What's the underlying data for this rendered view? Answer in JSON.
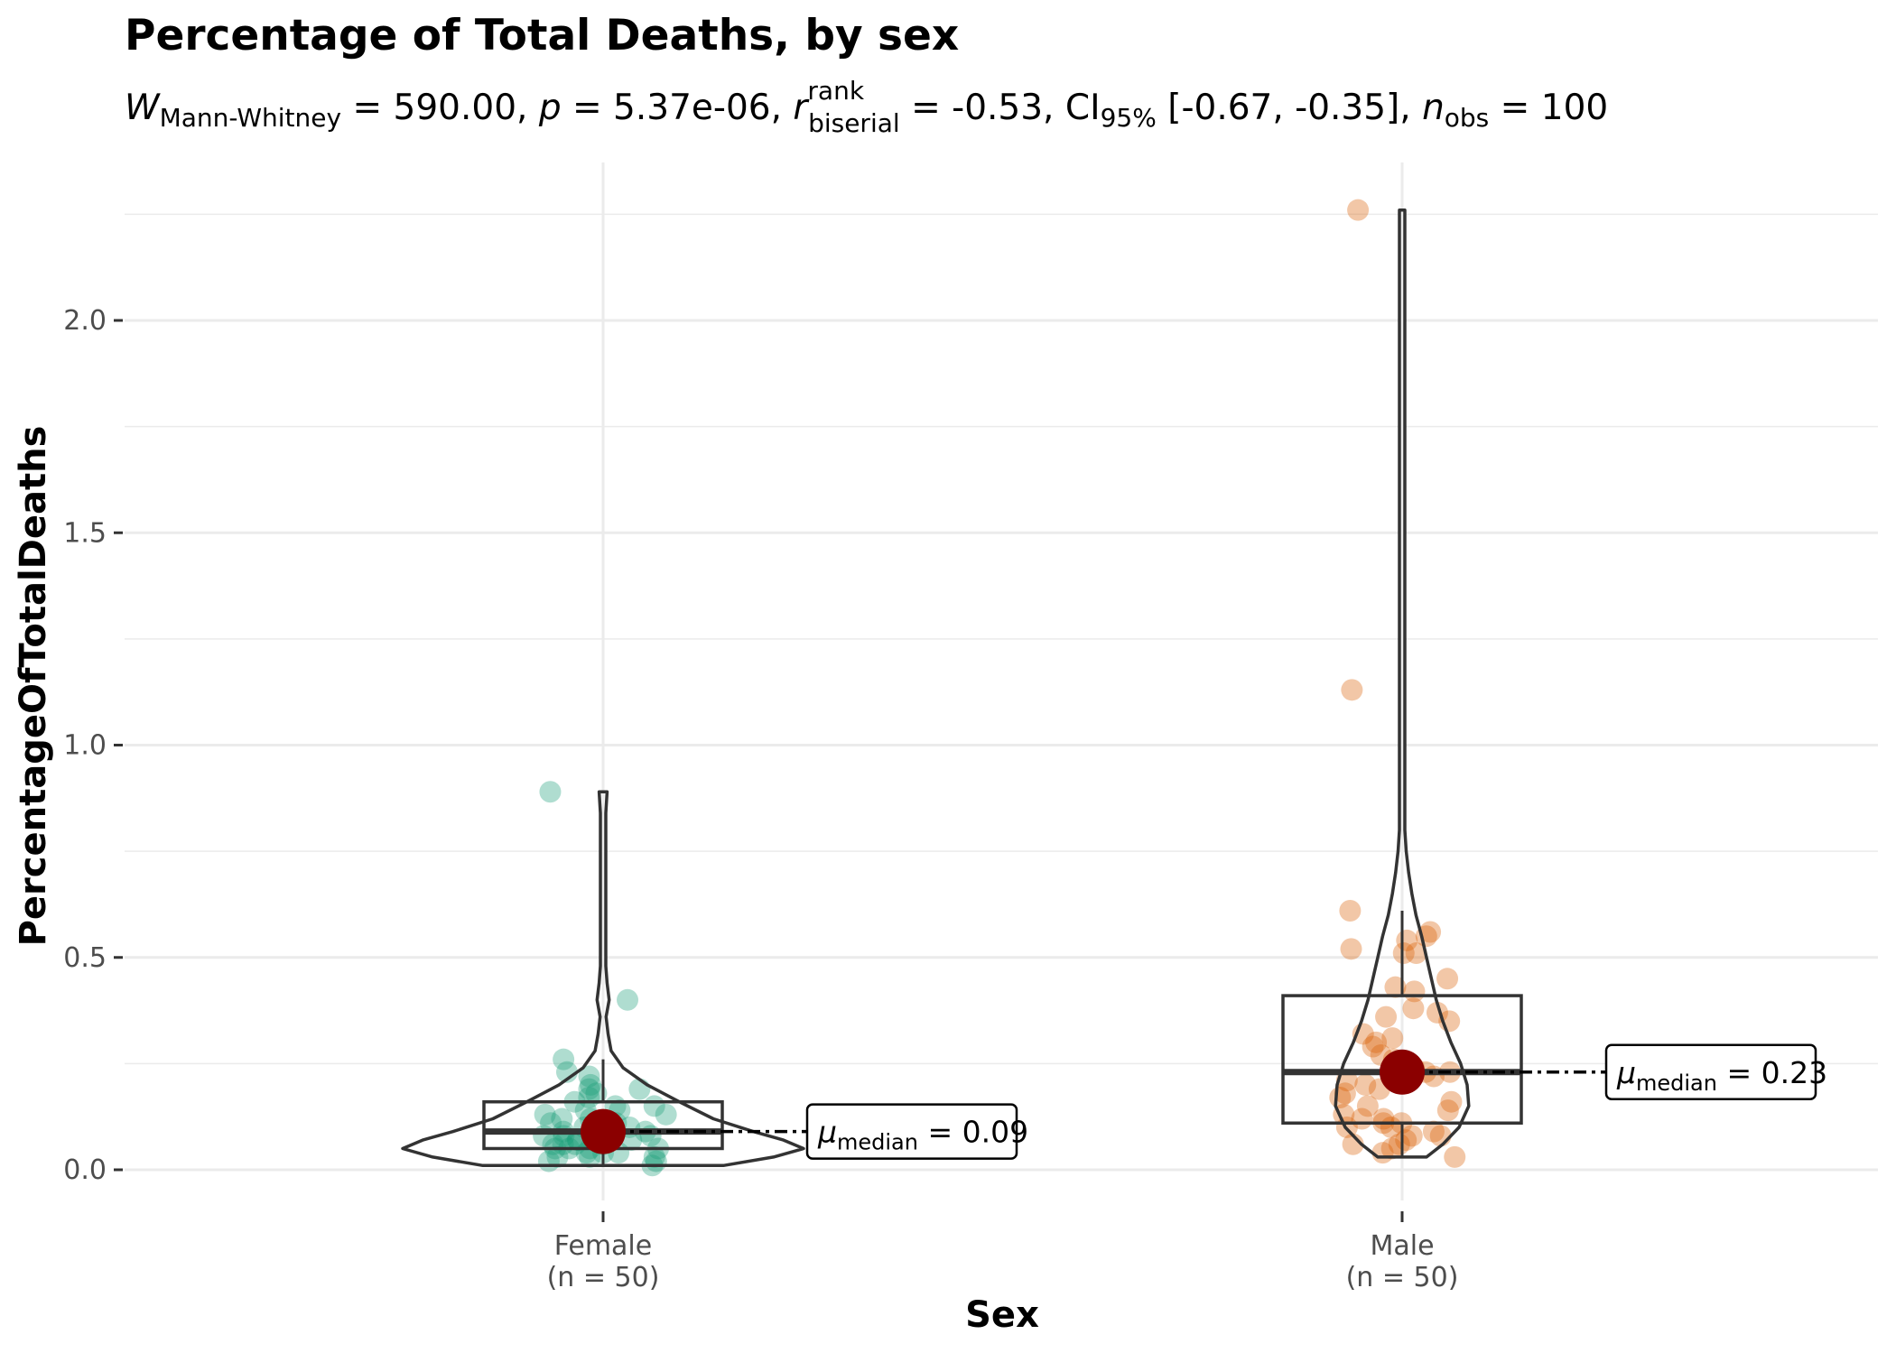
{
  "chart_data": {
    "type": "violin-box-jitter",
    "title": "Percentage of Total Deaths, by sex",
    "subtitle": {
      "W_symbol": "W",
      "W_sub": "Mann-Whitney",
      "W_value": " = 590.00, ",
      "p_symbol": "p",
      "p_value": " = 5.37e-06, ",
      "r_symbol": "r",
      "r_sup": "rank",
      "r_sub": "biserial",
      "r_value": " = -0.53, CI",
      "ci_sub": "95%",
      "ci_value": " [-0.67, -0.35], ",
      "n_symbol": "n",
      "n_sub": "obs",
      "n_value": " = 100"
    },
    "xlabel": "Sex",
    "ylabel": "PercentageOfTotalDeaths",
    "ylim": [
      -0.05,
      2.3
    ],
    "yticks": [
      0.0,
      0.5,
      1.0,
      1.5,
      2.0
    ],
    "ytick_labels": [
      "0.0",
      "0.5",
      "1.0",
      "1.5",
      "2.0"
    ],
    "grid": true,
    "groups": [
      {
        "name": "Female",
        "n_label": "(n = 50)",
        "color": "#1b9e77",
        "median": 0.09,
        "q1": 0.05,
        "q3": 0.16,
        "whisker_low": 0.01,
        "whisker_high": 0.26,
        "median_label_symbol": "μ",
        "median_label_sub": "median",
        "median_label_value": " = 0.09",
        "points": [
          0.01,
          0.02,
          0.02,
          0.03,
          0.03,
          0.03,
          0.04,
          0.04,
          0.04,
          0.05,
          0.05,
          0.05,
          0.05,
          0.06,
          0.06,
          0.06,
          0.06,
          0.07,
          0.07,
          0.07,
          0.08,
          0.08,
          0.08,
          0.09,
          0.09,
          0.09,
          0.1,
          0.1,
          0.1,
          0.11,
          0.11,
          0.12,
          0.12,
          0.13,
          0.13,
          0.14,
          0.14,
          0.15,
          0.15,
          0.16,
          0.17,
          0.18,
          0.19,
          0.19,
          0.2,
          0.22,
          0.23,
          0.26,
          0.4,
          0.89
        ],
        "violin_profile": [
          [
            0.01,
            0.6
          ],
          [
            0.03,
            0.85
          ],
          [
            0.05,
            1.0
          ],
          [
            0.07,
            0.9
          ],
          [
            0.09,
            0.75
          ],
          [
            0.12,
            0.55
          ],
          [
            0.16,
            0.38
          ],
          [
            0.2,
            0.22
          ],
          [
            0.24,
            0.1
          ],
          [
            0.28,
            0.04
          ],
          [
            0.32,
            0.025
          ],
          [
            0.36,
            0.015
          ],
          [
            0.4,
            0.03
          ],
          [
            0.44,
            0.02
          ],
          [
            0.48,
            0.01
          ],
          [
            0.55,
            0.008
          ],
          [
            0.65,
            0.006
          ],
          [
            0.75,
            0.006
          ],
          [
            0.84,
            0.01
          ],
          [
            0.89,
            0.02
          ]
        ]
      },
      {
        "name": "Male",
        "n_label": "(n = 50)",
        "color": "#d95f02",
        "median": 0.23,
        "q1": 0.11,
        "q3": 0.41,
        "whisker_low": 0.03,
        "whisker_high": 0.61,
        "median_label_symbol": "μ",
        "median_label_sub": "median",
        "median_label_value": " = 0.23",
        "points": [
          0.03,
          0.04,
          0.05,
          0.06,
          0.06,
          0.07,
          0.08,
          0.08,
          0.09,
          0.1,
          0.1,
          0.11,
          0.11,
          0.12,
          0.12,
          0.13,
          0.14,
          0.15,
          0.16,
          0.17,
          0.18,
          0.19,
          0.2,
          0.21,
          0.22,
          0.23,
          0.23,
          0.24,
          0.26,
          0.27,
          0.29,
          0.3,
          0.31,
          0.32,
          0.35,
          0.36,
          0.37,
          0.38,
          0.42,
          0.43,
          0.45,
          0.51,
          0.51,
          0.52,
          0.54,
          0.55,
          0.56,
          0.61,
          1.13,
          2.26
        ],
        "violin_profile": [
          [
            0.03,
            0.3
          ],
          [
            0.06,
            0.5
          ],
          [
            0.1,
            0.7
          ],
          [
            0.15,
            0.82
          ],
          [
            0.2,
            0.8
          ],
          [
            0.25,
            0.72
          ],
          [
            0.3,
            0.6
          ],
          [
            0.35,
            0.5
          ],
          [
            0.4,
            0.42
          ],
          [
            0.45,
            0.36
          ],
          [
            0.5,
            0.3
          ],
          [
            0.55,
            0.24
          ],
          [
            0.6,
            0.17
          ],
          [
            0.65,
            0.12
          ],
          [
            0.7,
            0.08
          ],
          [
            0.75,
            0.05
          ],
          [
            0.8,
            0.02
          ],
          [
            0.9,
            0.008
          ],
          [
            1.0,
            0.006
          ],
          [
            1.1,
            0.02
          ],
          [
            1.13,
            0.025
          ],
          [
            1.2,
            0.01
          ],
          [
            1.3,
            0.006
          ],
          [
            1.5,
            0.005
          ],
          [
            1.8,
            0.005
          ],
          [
            2.1,
            0.005
          ],
          [
            2.26,
            0.01
          ]
        ]
      }
    ],
    "mean_marker_color": "#8b0000"
  }
}
